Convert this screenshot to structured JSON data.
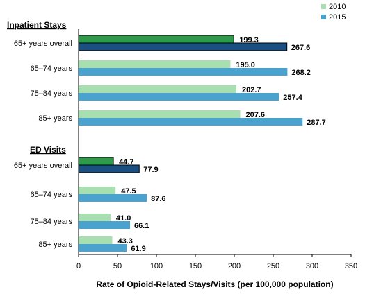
{
  "chart_data": {
    "type": "bar",
    "orientation": "horizontal",
    "xlabel": "Rate of Opioid-Related Stays/Visits  (per 100,000 population)",
    "xlim": [
      0,
      350
    ],
    "xticks": [
      0,
      50,
      100,
      150,
      200,
      250,
      300,
      350
    ],
    "legend": {
      "placement": "top-right",
      "entries": [
        "2010",
        "2015"
      ]
    },
    "colors": {
      "2010": "#a8dfb0",
      "2015": "#4aa3cf",
      "2010_overall": "#2e9a4a",
      "2015_overall": "#1a4f80"
    },
    "groups": [
      {
        "title": "Inpatient Stays",
        "categories": [
          "65+ years overall",
          "65–74 years",
          "75–84 years",
          "85+ years"
        ],
        "series": [
          {
            "name": "2010",
            "values": [
              199.3,
              195.0,
              202.7,
              207.6
            ],
            "labels": [
              "199.3",
              "195.0",
              "202.7",
              "207.6"
            ]
          },
          {
            "name": "2015",
            "values": [
              267.6,
              268.2,
              257.4,
              287.7
            ],
            "labels": [
              "267.6",
              "268.2",
              "257.4",
              "287.7"
            ]
          }
        ]
      },
      {
        "title": "ED Visits",
        "categories": [
          "65+ years overall",
          "65–74 years",
          "75–84 years",
          "85+ years"
        ],
        "series": [
          {
            "name": "2010",
            "values": [
              44.7,
              47.5,
              41.0,
              43.3
            ],
            "labels": [
              "44.7",
              "47.5",
              "41.0",
              "43.3"
            ]
          },
          {
            "name": "2015",
            "values": [
              77.9,
              87.6,
              66.1,
              61.9
            ],
            "labels": [
              "77.9",
              "87.6",
              "66.1",
              "61.9"
            ]
          }
        ]
      }
    ]
  }
}
